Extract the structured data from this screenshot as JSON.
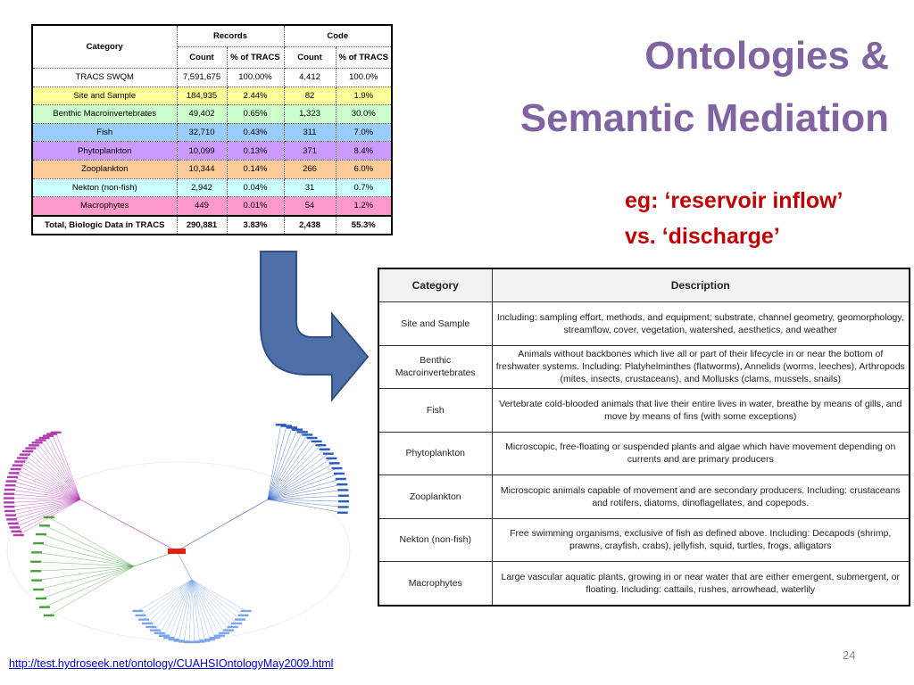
{
  "title": [
    "Ontologies &",
    "Semantic Mediation"
  ],
  "note": [
    "eg: ‘reservoir inflow’",
    "vs. ‘discharge’"
  ],
  "table1": {
    "category_header": "Category",
    "groups": [
      "Records",
      "Code"
    ],
    "subheaders": [
      "Count",
      "% of TRACS",
      "Count",
      "% of TRACS"
    ],
    "rows": [
      [
        "TRACS SWQM",
        "7,591,675",
        "100.00%",
        "4,412",
        "100.0%"
      ],
      [
        "Site and Sample",
        "184,935",
        "2.44%",
        "82",
        "1.9%"
      ],
      [
        "Benthic Macroinvertebrates",
        "49,402",
        "0.65%",
        "1,323",
        "30.0%"
      ],
      [
        "Fish",
        "32,710",
        "0.43%",
        "311",
        "7.0%"
      ],
      [
        "Phytoplankton",
        "10,099",
        "0.13%",
        "371",
        "8.4%"
      ],
      [
        "Zooplankton",
        "10,344",
        "0.14%",
        "266",
        "6.0%"
      ],
      [
        "Nekton (non-fish)",
        "2,942",
        "0.04%",
        "31",
        "0.7%"
      ],
      [
        "Macrophytes",
        "449",
        "0.01%",
        "54",
        "1.2%"
      ],
      [
        "Total, Biologic Data in TRACS",
        "290,881",
        "3.83%",
        "2,438",
        "55.3%"
      ]
    ]
  },
  "table2": {
    "headers": [
      "Category",
      "Description"
    ],
    "rows": [
      [
        "Site and Sample",
        "Including: sampling effort, methods, and equipment; substrate, channel geometry, geomorphology, streamflow, cover, vegetation, watershed, aesthetics, and weather"
      ],
      [
        "Benthic Macroinvertebrates",
        "Animals without backbones which live all or part of their lifecycle in or near the bottom of freshwater systems.  Including: Platyhelminthes (flatworms), Annelids (worms, leeches), Arthropods (mites, insects, crustaceans), and Mollusks (clams, mussels, snails)"
      ],
      [
        "Fish",
        "Vertebrate cold-blooded animals that live their entire lives in water, breathe by means of gills, and move by means of fins (with some exceptions)"
      ],
      [
        "Phytoplankton",
        "Microscopic, free-floating or suspended plants and algae which have movement depending on currents and are primary producers"
      ],
      [
        "Zooplankton",
        "Microscopic animals capable of movement and are secondary producers.  Including: crustaceans and rotifers, diatoms, dinoflagellates, and copepods."
      ],
      [
        "Nekton (non-fish)",
        "Free swimming organisms, exclusive of fish as defined above.  Including: Decapods (shrimp, prawns, crayfish, crabs), jellyfish, squid, turtles, frogs, alligators"
      ],
      [
        "Macrophytes",
        "Large vascular aquatic plants, growing in or near water that are either emergent, submergent, or floating.  Including: cattails, rushes, arrowhead, waterlily"
      ]
    ]
  },
  "url": "http://test.hydroseek.net/ontology/CUAHSIOntologyMay2009.html",
  "page_number": "24"
}
